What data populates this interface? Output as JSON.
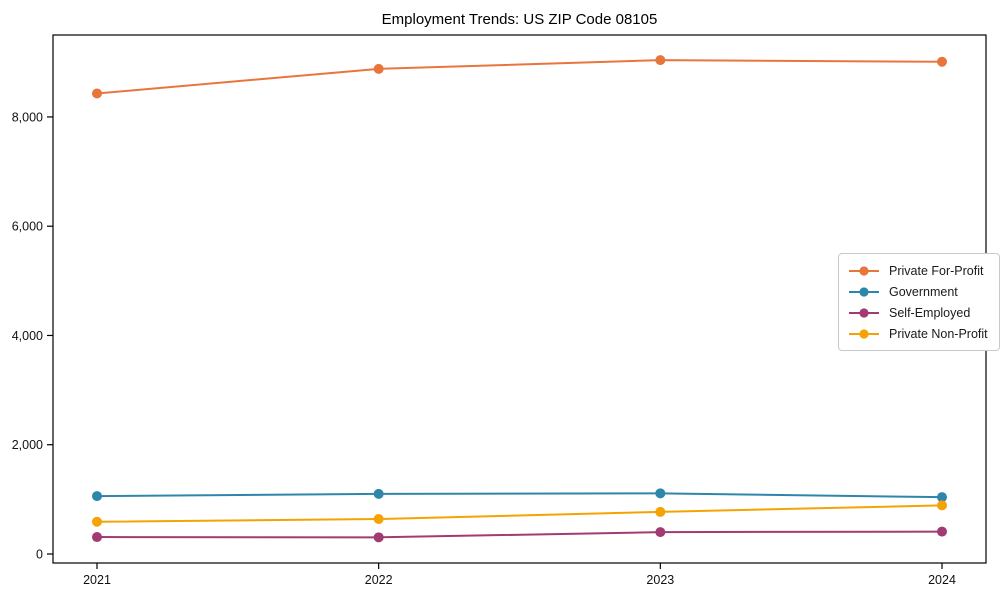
{
  "chart_data": {
    "type": "line",
    "title": "Employment Trends: US ZIP Code 08105",
    "x": [
      "2021",
      "2022",
      "2023",
      "2024"
    ],
    "series": [
      {
        "name": "Private For-Profit",
        "color": "#E8763C",
        "values": [
          8430,
          8880,
          9040,
          9010
        ]
      },
      {
        "name": "Government",
        "color": "#2E86AB",
        "values": [
          1060,
          1100,
          1110,
          1040
        ]
      },
      {
        "name": "Self-Employed",
        "color": "#A23B72",
        "values": [
          310,
          305,
          400,
          410
        ]
      },
      {
        "name": "Private Non-Profit",
        "color": "#F5A302",
        "values": [
          590,
          640,
          770,
          890
        ]
      }
    ],
    "yticks": [
      0,
      2000,
      4000,
      6000,
      8000
    ],
    "ytick_labels": [
      "0",
      "2,000",
      "4,000",
      "6,000",
      "8,000"
    ],
    "ylim": [
      -165,
      9500
    ],
    "xlabel": "",
    "ylabel": "",
    "grid": false,
    "legend_position": "right-middle",
    "frame_color": "#000000",
    "legend_border_color": "#c9c9c9",
    "marker": "circle"
  }
}
